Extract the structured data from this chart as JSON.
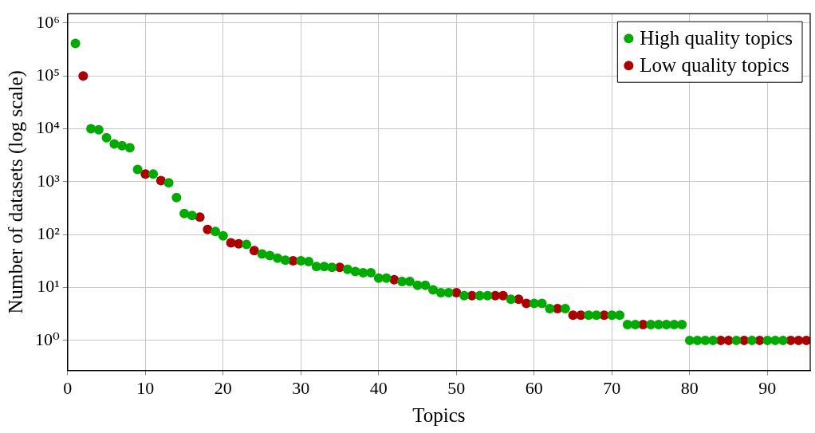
{
  "chart_data": {
    "type": "scatter",
    "xlabel": "Topics",
    "ylabel": "Number of datasets (log scale)",
    "log": "y",
    "grid": true,
    "legend": "top right",
    "marker": "circle",
    "xlim": [
      0,
      95.5
    ],
    "xticks": [
      0,
      10,
      20,
      30,
      40,
      50,
      60,
      70,
      80,
      90
    ],
    "ylim": [
      0.27,
      1500000
    ],
    "yticks": [
      {
        "value": 1,
        "label": "10⁰"
      },
      {
        "value": 10,
        "label": "10¹"
      },
      {
        "value": 100,
        "label": "10²"
      },
      {
        "value": 1000,
        "label": "10³"
      },
      {
        "value": 10000,
        "label": "10⁴"
      },
      {
        "value": 100000,
        "label": "10⁵"
      },
      {
        "value": 1000000,
        "label": "10⁶"
      }
    ],
    "series": [
      {
        "name": "High quality topics",
        "color": "#00aa00",
        "x": [
          1,
          3,
          4,
          5,
          6,
          7,
          8,
          9,
          11,
          13,
          14,
          15,
          16,
          19,
          20,
          23,
          25,
          26,
          27,
          28,
          30,
          31,
          32,
          33,
          34,
          36,
          37,
          38,
          39,
          40,
          41,
          43,
          44,
          45,
          46,
          47,
          48,
          49,
          51,
          53,
          54,
          57,
          60,
          61,
          62,
          64,
          67,
          68,
          70,
          71,
          72,
          73,
          75,
          76,
          77,
          78,
          79,
          80,
          81,
          82,
          83,
          86,
          88,
          90,
          91,
          92
        ],
        "values": [
          410000,
          10000,
          9600,
          6800,
          5200,
          4800,
          4400,
          1700,
          1400,
          950,
          500,
          250,
          230,
          115,
          95,
          65,
          43,
          40,
          36,
          33,
          32,
          31,
          25,
          25,
          24,
          22,
          20,
          19,
          19,
          15,
          15,
          13,
          13,
          11,
          11,
          9,
          8,
          8,
          7,
          7,
          7,
          6,
          5,
          5,
          4,
          4,
          3,
          3,
          3,
          3,
          2,
          2,
          2,
          2,
          2,
          2,
          2,
          1,
          1,
          1,
          1,
          1,
          1,
          1,
          1,
          1
        ]
      },
      {
        "name": "Low quality topics",
        "color": "#aa0000",
        "x": [
          2,
          10,
          12,
          17,
          18,
          21,
          22,
          24,
          29,
          35,
          42,
          50,
          52,
          55,
          56,
          58,
          59,
          63,
          65,
          66,
          69,
          74,
          84,
          85,
          87,
          89,
          93,
          94,
          95
        ],
        "values": [
          100000,
          1400,
          1050,
          215,
          125,
          70,
          67,
          50,
          32,
          24,
          14,
          8,
          7,
          7,
          7,
          6,
          5,
          4,
          3,
          3,
          3,
          2,
          1,
          1,
          1,
          1,
          1,
          1,
          1
        ]
      }
    ]
  }
}
